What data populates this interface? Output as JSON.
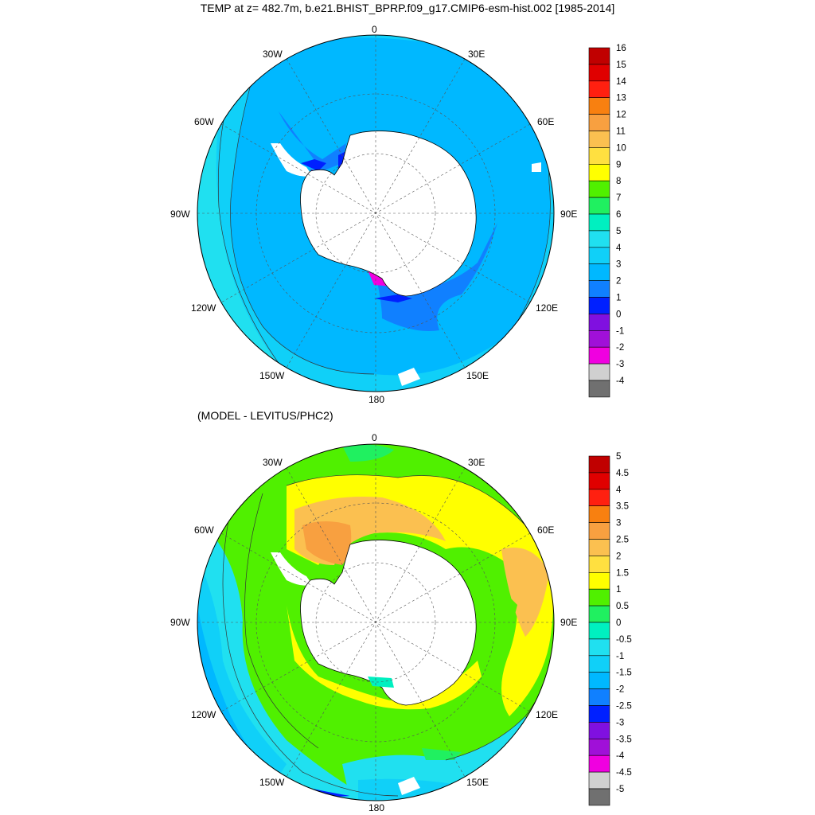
{
  "title": "TEMP at z= 482.7m, b.e21.BHIST_BPRP.f09_g17.CMIP6-esm-hist.002 [1985-2014]",
  "subtitle": "(MODEL - LEVITUS/PHC2)",
  "longitude_labels": {
    "lon_0": "0",
    "lon_30E": "30E",
    "lon_60E": "60E",
    "lon_90E": "90E",
    "lon_120E": "120E",
    "lon_150E": "150E",
    "lon_180": "180",
    "lon_150W": "150W",
    "lon_120W": "120W",
    "lon_90W": "90W",
    "lon_60W": "60W",
    "lon_30W": "30W"
  },
  "colorbar_top": {
    "labels": [
      "16",
      "15",
      "14",
      "13",
      "12",
      "11",
      "10",
      "9",
      "8",
      "7",
      "6",
      "5",
      "4",
      "3",
      "2",
      "1",
      "0",
      "-1",
      "-2",
      "-3",
      "-4"
    ],
    "colors": [
      "#c00000",
      "#e00000",
      "#ff2010",
      "#f88010",
      "#f8a040",
      "#fbc050",
      "#ffe040",
      "#ffff00",
      "#50f000",
      "#20f060",
      "#00f0c0",
      "#20e0f0",
      "#10d0f8",
      "#00b8ff",
      "#1080ff",
      "#0020ff",
      "#8010e0",
      "#a010d8",
      "#f000e0",
      "#d0d0d0",
      "#707070"
    ]
  },
  "colorbar_bottom": {
    "labels": [
      "5",
      "4.5",
      "4",
      "3.5",
      "3",
      "2.5",
      "2",
      "1.5",
      "1",
      "0.5",
      "0",
      "-0.5",
      "-1",
      "-1.5",
      "-2",
      "-2.5",
      "-3",
      "-3.5",
      "-4",
      "-4.5",
      "-5"
    ],
    "colors": [
      "#c00000",
      "#e00000",
      "#ff2010",
      "#f88010",
      "#f8a040",
      "#fbc050",
      "#ffe040",
      "#ffff00",
      "#50f000",
      "#20f060",
      "#00f0c0",
      "#20e0f0",
      "#10d0f8",
      "#00b8ff",
      "#1080ff",
      "#0020ff",
      "#8010e0",
      "#a010d8",
      "#f000e0",
      "#d0d0d0",
      "#707070"
    ]
  }
}
